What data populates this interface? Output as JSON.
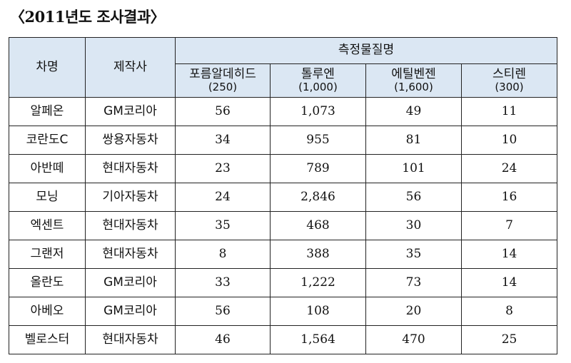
{
  "title": "〈2011년도 조사결과〉",
  "headers": {
    "car": "차명",
    "maker": "제작사",
    "group": "측정물질명",
    "substances": [
      {
        "name": "포름알데히드",
        "limit": "(250)"
      },
      {
        "name": "톨루엔",
        "limit": "(1,000)"
      },
      {
        "name": "에틸벤젠",
        "limit": "(1,600)"
      },
      {
        "name": "스티렌",
        "limit": "(300)"
      }
    ]
  },
  "rows": [
    {
      "car": "알페온",
      "maker": "GM코리아",
      "values": [
        "56",
        "1,073",
        "49",
        "11"
      ],
      "bold": [
        false,
        true,
        false,
        false
      ]
    },
    {
      "car": "코란도C",
      "maker": "쌍용자동차",
      "values": [
        "34",
        "955",
        "81",
        "10"
      ],
      "bold": [
        false,
        false,
        false,
        false
      ]
    },
    {
      "car": "아반떼",
      "maker": "현대자동차",
      "values": [
        "23",
        "789",
        "101",
        "24"
      ],
      "bold": [
        false,
        false,
        false,
        false
      ]
    },
    {
      "car": "모닝",
      "maker": "기아자동차",
      "values": [
        "24",
        "2,846",
        "56",
        "16"
      ],
      "bold": [
        false,
        true,
        false,
        false
      ]
    },
    {
      "car": "엑센트",
      "maker": "현대자동차",
      "values": [
        "35",
        "468",
        "30",
        "7"
      ],
      "bold": [
        false,
        false,
        false,
        false
      ]
    },
    {
      "car": "그랜저",
      "maker": "현대자동차",
      "values": [
        "8",
        "388",
        "35",
        "14"
      ],
      "bold": [
        false,
        false,
        false,
        false
      ]
    },
    {
      "car": "올란도",
      "maker": "GM코리아",
      "values": [
        "33",
        "1,222",
        "73",
        "14"
      ],
      "bold": [
        false,
        true,
        false,
        false
      ]
    },
    {
      "car": "아베오",
      "maker": "GM코리아",
      "values": [
        "56",
        "108",
        "20",
        "8"
      ],
      "bold": [
        false,
        false,
        false,
        false
      ]
    },
    {
      "car": "벨로스터",
      "maker": "현대자동차",
      "values": [
        "46",
        "1,564",
        "470",
        "25"
      ],
      "bold": [
        false,
        true,
        false,
        false
      ]
    }
  ],
  "colors": {
    "header_bg": "#dbe7f3",
    "border": "#222222"
  }
}
